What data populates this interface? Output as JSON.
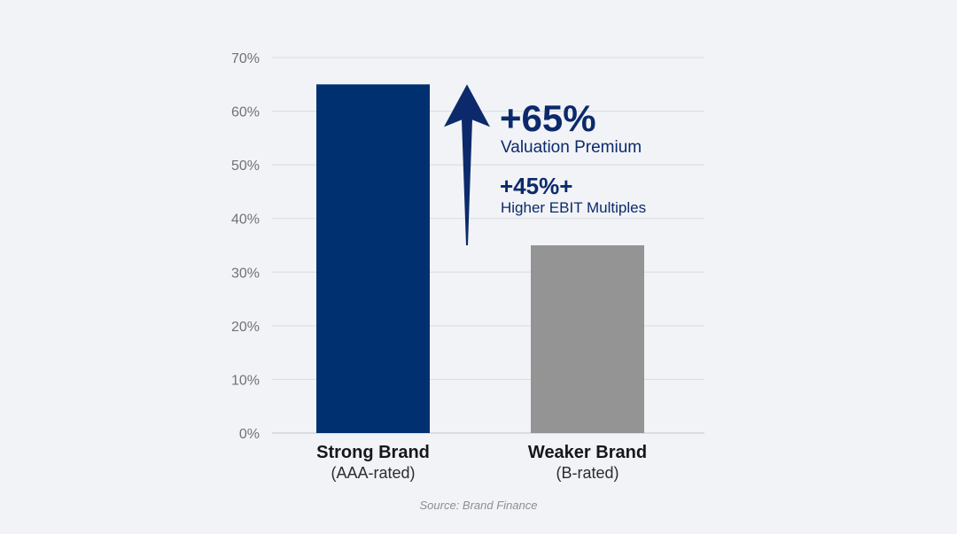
{
  "chart_data": {
    "type": "bar",
    "categories": [
      "Strong Brand",
      "Weaker Brand"
    ],
    "category_sublabels": [
      "(AAA-rated)",
      "(B-rated)"
    ],
    "values": [
      65,
      35
    ],
    "value_unit": "%",
    "ylim": [
      0,
      70
    ],
    "yticks": [
      "0%",
      "10%",
      "20%",
      "30%",
      "40%",
      "50%",
      "60%",
      "70%"
    ],
    "grid": true,
    "colors": [
      "#003070",
      "#949495"
    ],
    "annotations": [
      {
        "headline": "+65%",
        "text": "Valuation Premium"
      },
      {
        "headline": "+45%+",
        "text": "Higher EBIT Multiples"
      }
    ],
    "annotation_color": "#0c2a6b",
    "arrow_color": "#0c2a6b"
  },
  "source_text": "Source: Brand Finance"
}
